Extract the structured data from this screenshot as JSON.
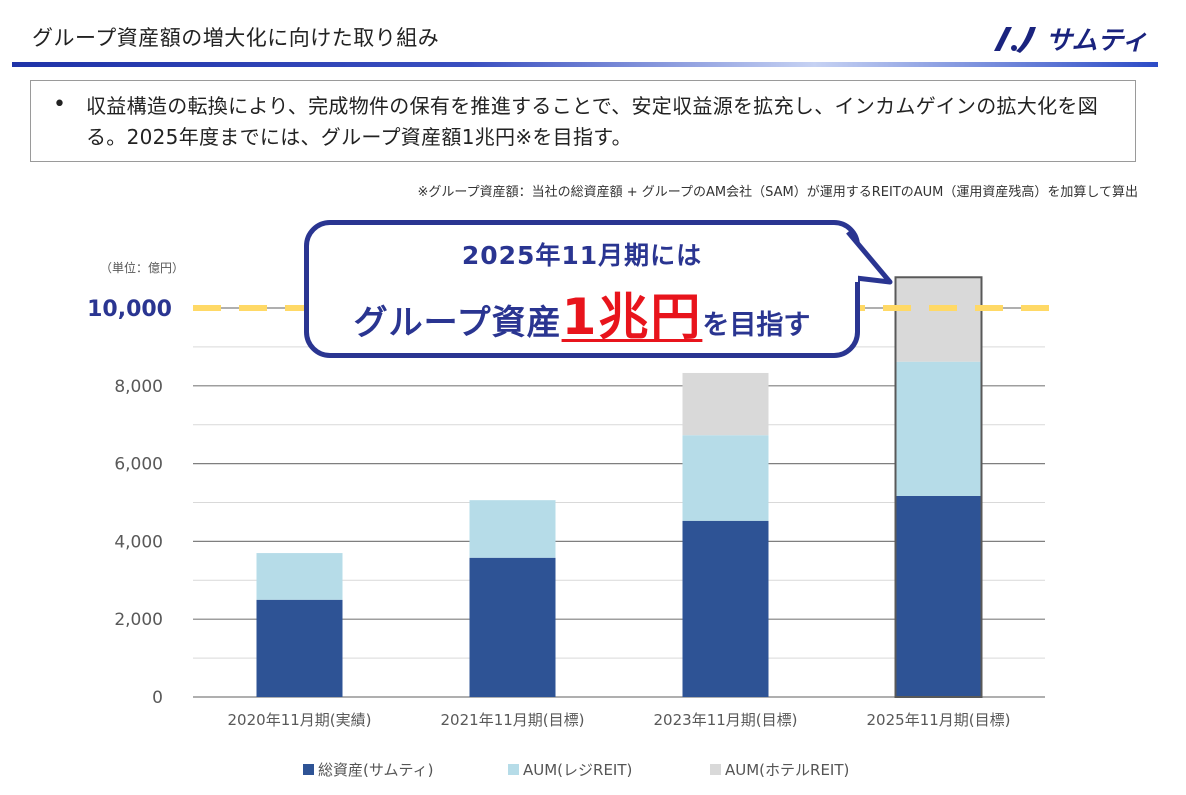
{
  "header": {
    "title": "グループ資産額の増大化に向けた取り組み",
    "brand": "サムティ"
  },
  "summary": {
    "bullet": "•",
    "text": "収益構造の転換により、完成物件の保有を推進することで、安定収益源を拡充し、インカムゲインの拡大化を図る。2025年度までには、グループ資産額1兆円※を目指す。"
  },
  "footnote": "※グループ資産額：当社の総資産額 + グループのAM会社（SAM）が運用するREITのAUM（運用資産残高）を加算して算出",
  "callout": {
    "line1": "2025年11月期には",
    "main": "グループ資産",
    "emphasis": "1兆円",
    "suffix": "を目指す"
  },
  "chart_data": {
    "type": "bar",
    "stacked": true,
    "unit_label": "（単位：億円）",
    "categories": [
      "2020年11月期(実績)",
      "2021年11月期(目標)",
      "2023年11月期(目標)",
      "2025年11月期(目標)"
    ],
    "series": [
      {
        "name": "総資産(サムティ)",
        "color": "#2e5395",
        "values": [
          2500,
          3580,
          4530,
          5170
        ]
      },
      {
        "name": "AUM(レジREIT)",
        "color": "#b6dce8",
        "values": [
          1200,
          1480,
          2200,
          3450
        ]
      },
      {
        "name": "AUM(ホテルREIT)",
        "color": "#d9d9d9",
        "values": [
          0,
          0,
          1600,
          2170
        ]
      }
    ],
    "ylim": [
      0,
      10000
    ],
    "yticks": [
      0,
      2000,
      4000,
      6000,
      8000
    ],
    "ytick_labels": [
      "0",
      "2,000",
      "4,000",
      "6,000",
      "8,000"
    ],
    "target_line": {
      "value": 10000,
      "label": "10,000",
      "color": "#ffd966"
    },
    "gridlines": true,
    "legend_position": "bottom"
  }
}
